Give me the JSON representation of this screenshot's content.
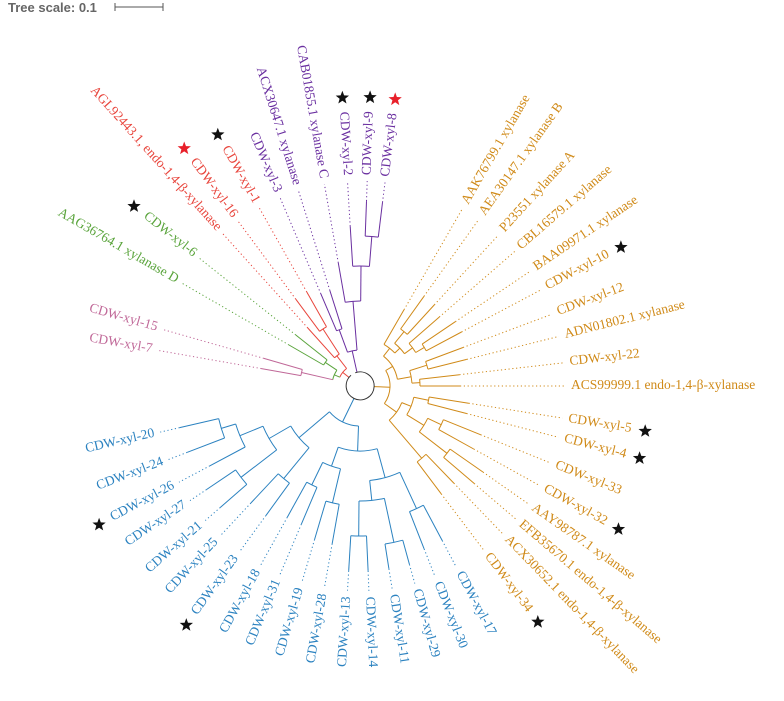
{
  "scale": {
    "label": "Tree scale: 0.1"
  },
  "colors": {
    "purple": "#6a2fa0",
    "red": "#e8453c",
    "green": "#5aa43c",
    "pink": "#c06898",
    "blue": "#2b82c0",
    "orange": "#d08a18",
    "star_black": "#111111",
    "star_red": "#e8202a",
    "center": "#333333"
  },
  "leaves": [
    {
      "label": "CDW-xyl-8",
      "clade": "purple",
      "star": "red"
    },
    {
      "label": "CDW-xyl-9",
      "clade": "purple",
      "star": "black"
    },
    {
      "label": "CDW-xyl-2",
      "clade": "purple",
      "star": "black"
    },
    {
      "label": "CAB01855.1 xylanase C",
      "clade": "purple",
      "star": ""
    },
    {
      "label": "ACX30647.1 xylanase",
      "clade": "purple",
      "star": ""
    },
    {
      "label": "CDW-xyl-3",
      "clade": "purple",
      "star": ""
    },
    {
      "label": "CDW-xyl-1",
      "clade": "red",
      "star": "black"
    },
    {
      "label": "CDW-xyl-16",
      "clade": "red",
      "star": "red"
    },
    {
      "label": "AGL92443.1, endo-1,4-β-xylanase",
      "clade": "red",
      "star": ""
    },
    {
      "label": "CDW-xyl-6",
      "clade": "green",
      "star": "black"
    },
    {
      "label": "AAG36764.1 xylanase D",
      "clade": "green",
      "star": ""
    },
    {
      "label": "CDW-xyl-15",
      "clade": "pink",
      "star": ""
    },
    {
      "label": "CDW-xyl-7",
      "clade": "pink",
      "star": ""
    },
    {
      "label": "CDW-xyl-20",
      "clade": "blue",
      "star": ""
    },
    {
      "label": "CDW-xyl-24",
      "clade": "blue",
      "star": ""
    },
    {
      "label": "CDW-xyl-26",
      "clade": "blue",
      "star": "black"
    },
    {
      "label": "CDW-xyl-27",
      "clade": "blue",
      "star": ""
    },
    {
      "label": "CDW-xyl-21",
      "clade": "blue",
      "star": ""
    },
    {
      "label": "CDW-xyl-25",
      "clade": "blue",
      "star": ""
    },
    {
      "label": "CDW-xyl-23",
      "clade": "blue",
      "star": "black"
    },
    {
      "label": "CDW-xyl-18",
      "clade": "blue",
      "star": ""
    },
    {
      "label": "CDW-xyl-31",
      "clade": "blue",
      "star": ""
    },
    {
      "label": "CDW-xyl-19",
      "clade": "blue",
      "star": ""
    },
    {
      "label": "CDW-xyl-28",
      "clade": "blue",
      "star": ""
    },
    {
      "label": "CDW-xyl-13",
      "clade": "blue",
      "star": ""
    },
    {
      "label": "CDW-xyl-14",
      "clade": "blue",
      "star": ""
    },
    {
      "label": "CDW-xyl-11",
      "clade": "blue",
      "star": ""
    },
    {
      "label": "CDW-xyl-29",
      "clade": "blue",
      "star": ""
    },
    {
      "label": "CDW-xyl-30",
      "clade": "blue",
      "star": ""
    },
    {
      "label": "CDW-xyl-17",
      "clade": "blue",
      "star": ""
    },
    {
      "label": "CDW-xyl-34",
      "clade": "orange",
      "star": "black"
    },
    {
      "label": "ACX30652.1 endo-1,4-β-xylanase",
      "clade": "orange",
      "star": ""
    },
    {
      "label": "EFB35670.1 endo-1,4-β-xylanase",
      "clade": "orange",
      "star": ""
    },
    {
      "label": "AAY98787.1 xylanase",
      "clade": "orange",
      "star": ""
    },
    {
      "label": "CDW-xyl-32",
      "clade": "orange",
      "star": "black"
    },
    {
      "label": "CDW-xyl-33",
      "clade": "orange",
      "star": ""
    },
    {
      "label": "CDW-xyl-4",
      "clade": "orange",
      "star": "black"
    },
    {
      "label": "CDW-xyl-5",
      "clade": "orange",
      "star": "black"
    },
    {
      "label": "ACS99999.1 endo-1,4-β-xylanase",
      "clade": "orange",
      "star": ""
    },
    {
      "label": "CDW-xyl-22",
      "clade": "orange",
      "star": ""
    },
    {
      "label": "ADN01802.1 xylanase",
      "clade": "orange",
      "star": ""
    },
    {
      "label": "CDW-xyl-12",
      "clade": "orange",
      "star": ""
    },
    {
      "label": "CDW-xyl-10",
      "clade": "orange",
      "star": "black"
    },
    {
      "label": "BAA09971.1 xylanase",
      "clade": "orange",
      "star": ""
    },
    {
      "label": "CBL16579.1 xylanase",
      "clade": "orange",
      "star": ""
    },
    {
      "label": "P23551 xylanase A",
      "clade": "orange",
      "star": ""
    },
    {
      "label": "AEA30147.1 xylanase B",
      "clade": "orange",
      "star": ""
    },
    {
      "label": "AAK76799.1 xylanase",
      "clade": "orange",
      "star": ""
    }
  ]
}
